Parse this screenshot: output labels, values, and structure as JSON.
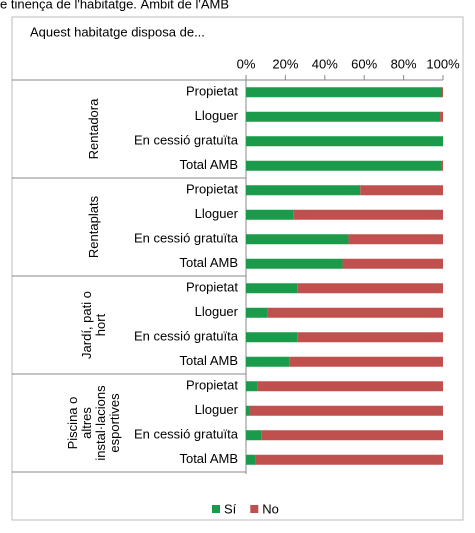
{
  "chart_data": {
    "type": "stacked-bar-horizontal",
    "title": "e tinença de l'habitatge. Àmbit de l'AMB",
    "subtitle": "Aquest habitatge disposa de...",
    "groups": [
      {
        "lines": [
          "Rentadora"
        ],
        "count": 4
      },
      {
        "lines": [
          "Rentaplats"
        ],
        "count": 4
      },
      {
        "lines": [
          "Jardí, pati o",
          "hort"
        ],
        "count": 4
      },
      {
        "lines": [
          "Piscina o",
          "altres",
          "instal·lacions",
          "esportives"
        ],
        "count": 4
      }
    ],
    "categories": [
      "Propietat",
      "Lloguer",
      "En cessió gratuïta",
      "Total AMB",
      "Propietat",
      "Lloguer",
      "En cessió gratuïta",
      "Total AMB",
      "Propietat",
      "Lloguer",
      "En cessió gratuïta",
      "Total AMB",
      "Propietat",
      "Lloguer",
      "En cessió gratuïta",
      "Total AMB"
    ],
    "series": [
      {
        "name": "Sí",
        "color": "#1a9a4a",
        "values": [
          99.5,
          98.5,
          100,
          99,
          58,
          24,
          52,
          49,
          26,
          11,
          26,
          22,
          6,
          2,
          8,
          5
        ]
      },
      {
        "name": "No",
        "color": "#c0504d",
        "values": [
          0.5,
          1.5,
          0,
          1,
          42,
          76,
          48,
          51,
          74,
          89,
          74,
          78,
          94,
          98,
          92,
          95
        ]
      }
    ],
    "xlim": [
      0,
      100
    ],
    "xticks": [
      {
        "value": 0,
        "label": "0%"
      },
      {
        "value": 20,
        "label": "20%"
      },
      {
        "value": 40,
        "label": "40%"
      },
      {
        "value": 60,
        "label": "60%"
      },
      {
        "value": 80,
        "label": "80%"
      },
      {
        "value": 100,
        "label": "100%"
      }
    ],
    "legend": "bottom"
  }
}
